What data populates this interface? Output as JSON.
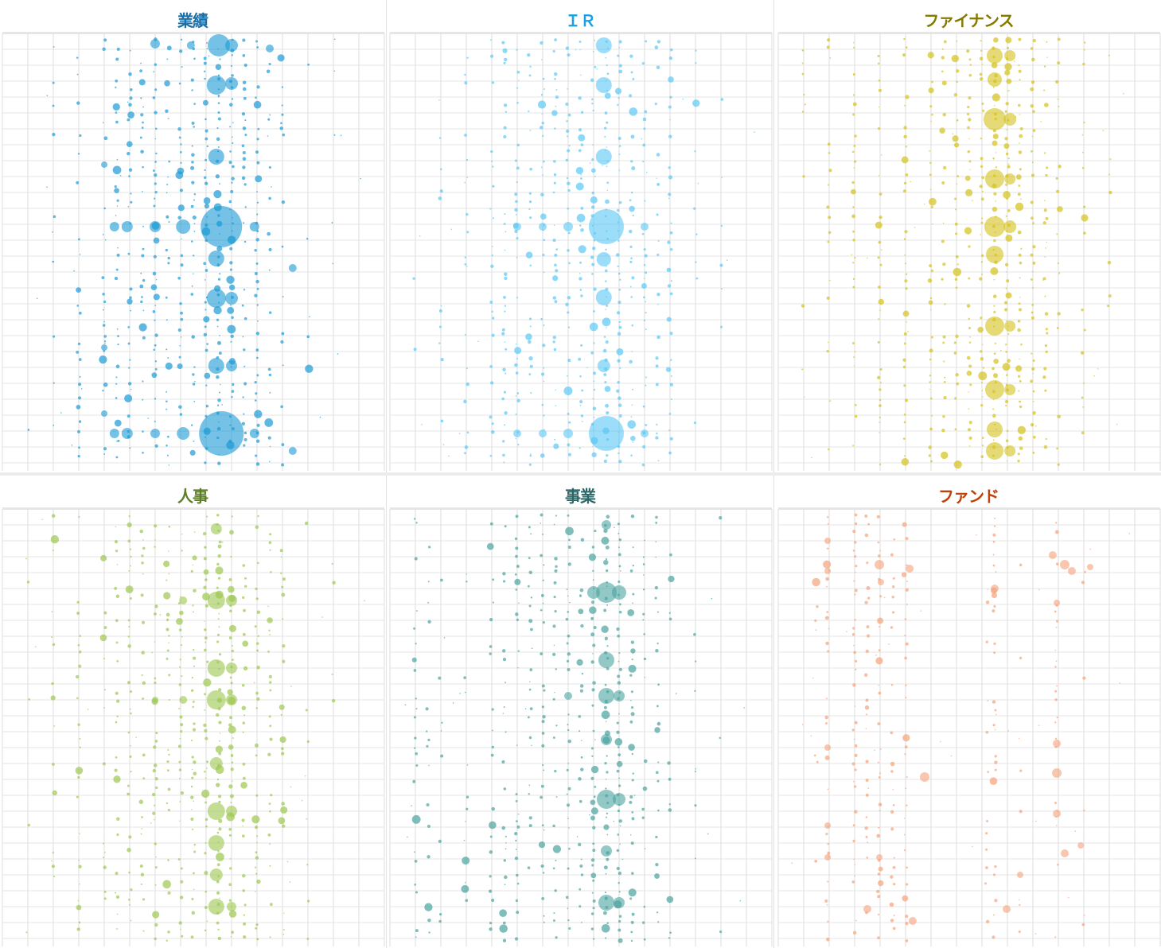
{
  "chart_data": [
    {
      "type": "scatter",
      "title": "業績",
      "title_color": "#1a6fa8",
      "color": "#1a9ad6",
      "xlim": [
        0,
        15
      ],
      "ylim": [
        0,
        27.5
      ],
      "y_direction": "down",
      "grid": true,
      "major": [
        [
          8.5,
          0.75,
          14
        ],
        [
          6.0,
          0.65,
          6
        ],
        [
          7.4,
          0.75,
          5
        ],
        [
          9.0,
          0.75,
          8
        ],
        [
          10.5,
          0.95,
          5
        ],
        [
          8.4,
          3.25,
          12
        ],
        [
          9.0,
          3.15,
          8
        ],
        [
          8.4,
          7.75,
          10
        ],
        [
          8.6,
          12.15,
          26
        ],
        [
          7.1,
          12.15,
          9
        ],
        [
          6.0,
          12.15,
          7
        ],
        [
          4.9,
          12.15,
          7
        ],
        [
          4.4,
          12.15,
          6
        ],
        [
          9.9,
          12.15,
          6
        ],
        [
          8.4,
          14.15,
          10
        ],
        [
          8.4,
          16.65,
          12
        ],
        [
          9.0,
          16.65,
          8
        ],
        [
          8.4,
          20.9,
          10
        ],
        [
          9.0,
          20.9,
          7
        ],
        [
          8.6,
          25.15,
          28
        ],
        [
          7.1,
          25.15,
          8
        ],
        [
          6.0,
          25.15,
          6
        ],
        [
          4.9,
          25.15,
          7
        ],
        [
          4.4,
          25.15,
          6
        ],
        [
          9.9,
          25.15,
          6
        ],
        [
          11.4,
          14.75,
          5
        ],
        [
          11.4,
          26.25,
          5
        ],
        [
          4.0,
          19.75,
          4
        ],
        [
          4.0,
          23.9,
          4
        ],
        [
          4.0,
          8.25,
          4
        ]
      ],
      "minor_columns": [
        [
          1,
          0.1
        ],
        [
          2,
          0.25
        ],
        [
          3,
          0.35
        ],
        [
          4,
          0.45
        ],
        [
          4.5,
          0.5
        ],
        [
          5,
          0.55
        ],
        [
          5.5,
          0.5
        ],
        [
          6,
          0.6
        ],
        [
          6.5,
          0.5
        ],
        [
          7,
          0.65
        ],
        [
          7.5,
          0.6
        ],
        [
          8,
          0.8
        ],
        [
          8.5,
          0.9
        ],
        [
          9,
          0.85
        ],
        [
          9.5,
          0.6
        ],
        [
          10,
          0.6
        ],
        [
          10.5,
          0.45
        ],
        [
          11,
          0.3
        ],
        [
          12,
          0.12
        ],
        [
          13,
          0.05
        ]
      ]
    },
    {
      "type": "scatter",
      "title": "ＩＲ",
      "title_color": "#1aa0e6",
      "color": "#5ac8f5",
      "xlim": [
        0,
        15
      ],
      "ylim": [
        0,
        27.5
      ],
      "y_direction": "down",
      "grid": true,
      "major": [
        [
          8.4,
          0.75,
          10
        ],
        [
          8.4,
          3.25,
          10
        ],
        [
          8.4,
          7.75,
          10
        ],
        [
          8.5,
          12.15,
          22
        ],
        [
          8.4,
          14.2,
          9
        ],
        [
          8.4,
          16.6,
          10
        ],
        [
          8.4,
          20.9,
          8
        ],
        [
          8.5,
          25.15,
          22
        ],
        [
          5.0,
          12.15,
          5
        ],
        [
          6.0,
          12.15,
          5
        ],
        [
          7.0,
          12.15,
          6
        ],
        [
          10.0,
          12.15,
          5
        ],
        [
          5.0,
          25.15,
          5
        ],
        [
          7.0,
          25.15,
          6
        ],
        [
          6.0,
          25.15,
          5
        ],
        [
          10.0,
          25.15,
          5
        ]
      ],
      "minor_columns": [
        [
          1,
          0.1
        ],
        [
          2,
          0.2
        ],
        [
          3,
          0.3
        ],
        [
          4,
          0.4
        ],
        [
          4.5,
          0.45
        ],
        [
          5,
          0.5
        ],
        [
          5.5,
          0.45
        ],
        [
          6,
          0.5
        ],
        [
          6.5,
          0.45
        ],
        [
          7,
          0.55
        ],
        [
          7.5,
          0.5
        ],
        [
          8,
          0.7
        ],
        [
          8.5,
          0.9
        ],
        [
          9,
          0.75
        ],
        [
          9.5,
          0.5
        ],
        [
          10,
          0.5
        ],
        [
          10.5,
          0.4
        ],
        [
          11,
          0.3
        ],
        [
          12,
          0.15
        ],
        [
          13,
          0.08
        ]
      ]
    },
    {
      "type": "scatter",
      "title": "ファイナンス",
      "title_color": "#857a00",
      "color": "#d4c21a",
      "xlim": [
        0,
        15
      ],
      "ylim": [
        0,
        27.5
      ],
      "y_direction": "down",
      "grid": true,
      "major": [
        [
          8.5,
          1.4,
          10
        ],
        [
          8.5,
          2.9,
          9
        ],
        [
          8.5,
          5.4,
          14
        ],
        [
          8.5,
          9.15,
          12
        ],
        [
          8.5,
          12.15,
          13
        ],
        [
          8.5,
          13.9,
          11
        ],
        [
          8.5,
          18.4,
          12
        ],
        [
          8.5,
          22.4,
          12
        ],
        [
          8.5,
          24.9,
          10
        ],
        [
          8.5,
          26.25,
          11
        ],
        [
          9.1,
          1.4,
          7
        ],
        [
          9.1,
          5.4,
          8
        ],
        [
          9.1,
          9.15,
          7
        ],
        [
          9.1,
          12.15,
          8
        ],
        [
          9.1,
          18.4,
          7
        ],
        [
          9.1,
          22.4,
          7
        ],
        [
          9.1,
          26.25,
          7
        ]
      ],
      "minor_columns": [
        [
          1,
          0.25
        ],
        [
          2,
          0.35
        ],
        [
          3,
          0.5
        ],
        [
          4,
          0.55
        ],
        [
          5,
          0.55
        ],
        [
          6,
          0.6
        ],
        [
          6.5,
          0.4
        ],
        [
          7,
          0.6
        ],
        [
          7.5,
          0.55
        ],
        [
          8,
          0.7
        ],
        [
          8.5,
          0.95
        ],
        [
          9,
          0.9
        ],
        [
          9.5,
          0.7
        ],
        [
          10,
          0.6
        ],
        [
          10.5,
          0.45
        ],
        [
          11,
          0.3
        ],
        [
          12,
          0.2
        ],
        [
          13,
          0.1
        ]
      ]
    },
    {
      "type": "scatter",
      "title": "人事",
      "title_color": "#5c7f27",
      "color": "#9cc64e",
      "xlim": [
        0,
        15
      ],
      "ylim": [
        0,
        27.5
      ],
      "y_direction": "down",
      "grid": true,
      "major": [
        [
          8.4,
          1.25,
          7
        ],
        [
          8.4,
          5.75,
          11
        ],
        [
          9.0,
          5.75,
          7
        ],
        [
          7.1,
          5.75,
          5
        ],
        [
          8.4,
          10,
          11
        ],
        [
          9.0,
          10,
          7
        ],
        [
          8.4,
          12,
          12
        ],
        [
          9.0,
          12,
          7
        ],
        [
          7.1,
          12,
          5
        ],
        [
          6.0,
          12,
          4
        ],
        [
          8.4,
          16,
          8
        ],
        [
          8.4,
          19,
          11
        ],
        [
          9.0,
          19,
          7
        ],
        [
          8.4,
          21,
          10
        ],
        [
          8.4,
          23,
          8
        ],
        [
          8.4,
          25,
          10
        ],
        [
          9.0,
          25,
          6
        ]
      ],
      "minor_columns": [
        [
          1,
          0.1
        ],
        [
          2,
          0.2
        ],
        [
          3,
          0.3
        ],
        [
          4,
          0.35
        ],
        [
          4.5,
          0.45
        ],
        [
          5,
          0.45
        ],
        [
          5.5,
          0.4
        ],
        [
          6,
          0.5
        ],
        [
          6.5,
          0.45
        ],
        [
          7,
          0.55
        ],
        [
          7.5,
          0.5
        ],
        [
          8,
          0.7
        ],
        [
          8.5,
          0.9
        ],
        [
          9,
          0.8
        ],
        [
          9.5,
          0.55
        ],
        [
          10,
          0.5
        ],
        [
          10.5,
          0.4
        ],
        [
          11,
          0.3
        ],
        [
          12,
          0.15
        ],
        [
          13,
          0.06
        ]
      ]
    },
    {
      "type": "scatter",
      "title": "事業",
      "title_color": "#2c6666",
      "color": "#4aa3a0",
      "xlim": [
        0,
        15
      ],
      "ylim": [
        0,
        27.5
      ],
      "y_direction": "down",
      "grid": true,
      "major": [
        [
          8.5,
          5.25,
          13
        ],
        [
          9.0,
          5.25,
          9
        ],
        [
          8.0,
          5.25,
          8
        ],
        [
          8.5,
          9.5,
          10
        ],
        [
          8.5,
          11.75,
          10
        ],
        [
          9.0,
          11.75,
          7
        ],
        [
          7.0,
          11.75,
          5
        ],
        [
          8.5,
          18.25,
          12
        ],
        [
          9.0,
          18.25,
          8
        ],
        [
          8.5,
          24.75,
          10
        ],
        [
          9.0,
          24.75,
          7
        ],
        [
          8.5,
          1,
          6
        ],
        [
          8.5,
          14.5,
          7
        ],
        [
          8.5,
          21.5,
          7
        ]
      ],
      "minor_columns": [
        [
          1,
          0.35
        ],
        [
          1.5,
          0.2
        ],
        [
          2,
          0.25
        ],
        [
          3,
          0.3
        ],
        [
          4,
          0.4
        ],
        [
          4.5,
          0.4
        ],
        [
          5,
          0.45
        ],
        [
          5.5,
          0.4
        ],
        [
          6,
          0.5
        ],
        [
          6.5,
          0.4
        ],
        [
          7,
          0.5
        ],
        [
          7.5,
          0.45
        ],
        [
          8,
          0.7
        ],
        [
          8.5,
          0.9
        ],
        [
          9,
          0.75
        ],
        [
          9.5,
          0.55
        ],
        [
          10,
          0.45
        ],
        [
          10.5,
          0.35
        ],
        [
          11,
          0.25
        ],
        [
          12,
          0.12
        ],
        [
          13,
          0.05
        ]
      ]
    },
    {
      "type": "scatter",
      "title": "ファンド",
      "title_color": "#c0410c",
      "color": "#f5a27a",
      "xlim": [
        0,
        15
      ],
      "ylim": [
        0,
        27.5
      ],
      "y_direction": "down",
      "grid": true,
      "major": [
        [
          1.94,
          2,
          4
        ],
        [
          1.94,
          3.9,
          4
        ],
        [
          3.97,
          3.5,
          6
        ],
        [
          5.16,
          3.75,
          5
        ],
        [
          4.03,
          4.6,
          4
        ],
        [
          8.5,
          5,
          5
        ],
        [
          10.78,
          2.9,
          5
        ],
        [
          11.25,
          3.5,
          6
        ],
        [
          11.53,
          3.9,
          5
        ],
        [
          12.25,
          3.65,
          4
        ],
        [
          10.94,
          5.9,
          4
        ],
        [
          5.75,
          16.85,
          6
        ],
        [
          10.94,
          14.75,
          5
        ],
        [
          10.94,
          16.6,
          6
        ],
        [
          10.94,
          19.15,
          5
        ],
        [
          11.88,
          21.15,
          4
        ],
        [
          11.25,
          21.65,
          5
        ],
        [
          9.5,
          23,
          4
        ],
        [
          8.97,
          25.15,
          5
        ],
        [
          5.28,
          25.9,
          5
        ],
        [
          3.5,
          25.15,
          5
        ],
        [
          1.94,
          15,
          4
        ],
        [
          1.94,
          19.9,
          4
        ],
        [
          3.97,
          21.9,
          4
        ],
        [
          1.94,
          21.9,
          4
        ]
      ],
      "minor_columns": [
        [
          1.5,
          0.2
        ],
        [
          1.94,
          0.5
        ],
        [
          3.0,
          0.55
        ],
        [
          3.5,
          0.3
        ],
        [
          3.97,
          0.55
        ],
        [
          4.5,
          0.35
        ],
        [
          5.0,
          0.3
        ],
        [
          8.2,
          0.2
        ],
        [
          8.5,
          0.4
        ],
        [
          9.5,
          0.15
        ],
        [
          10.94,
          0.35
        ],
        [
          12,
          0.05
        ]
      ]
    }
  ]
}
